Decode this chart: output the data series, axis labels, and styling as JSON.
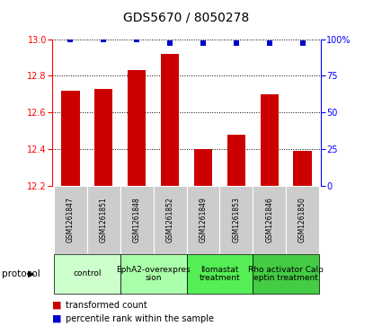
{
  "title": "GDS5670 / 8050278",
  "samples": [
    "GSM1261847",
    "GSM1261851",
    "GSM1261848",
    "GSM1261852",
    "GSM1261849",
    "GSM1261853",
    "GSM1261846",
    "GSM1261850"
  ],
  "bar_values": [
    12.72,
    12.73,
    12.83,
    12.92,
    12.4,
    12.48,
    12.7,
    12.39
  ],
  "percentile_values": [
    100,
    100,
    100,
    97,
    97,
    97,
    97,
    97
  ],
  "bar_color": "#cc0000",
  "dot_color": "#0000cc",
  "ylim_left": [
    12.2,
    13.0
  ],
  "ylim_right": [
    0,
    100
  ],
  "yticks_left": [
    12.2,
    12.4,
    12.6,
    12.8,
    13.0
  ],
  "yticks_right": [
    0,
    25,
    50,
    75,
    100
  ],
  "ytick_labels_right": [
    "0",
    "25",
    "50",
    "75",
    "100%"
  ],
  "protocols": [
    {
      "label": "control",
      "span": [
        0,
        2
      ],
      "color": "#ccffcc"
    },
    {
      "label": "EphA2-overexpres\nsion",
      "span": [
        2,
        4
      ],
      "color": "#aaffaa"
    },
    {
      "label": "Ilomastat\ntreatment",
      "span": [
        4,
        6
      ],
      "color": "#55ee55"
    },
    {
      "label": "Rho activator Calp\neptin treatment",
      "span": [
        6,
        8
      ],
      "color": "#44cc44"
    }
  ],
  "legend_items": [
    {
      "label": "transformed count",
      "color": "#cc0000"
    },
    {
      "label": "percentile rank within the sample",
      "color": "#0000cc"
    }
  ],
  "protocol_label": "protocol",
  "bar_width": 0.55,
  "dot_size": 18,
  "background_color": "#ffffff",
  "gray_bg": "#cccccc",
  "sample_fontsize": 5.5,
  "proto_fontsize": 6.5,
  "title_fontsize": 10,
  "tick_fontsize": 7,
  "legend_fontsize": 7
}
